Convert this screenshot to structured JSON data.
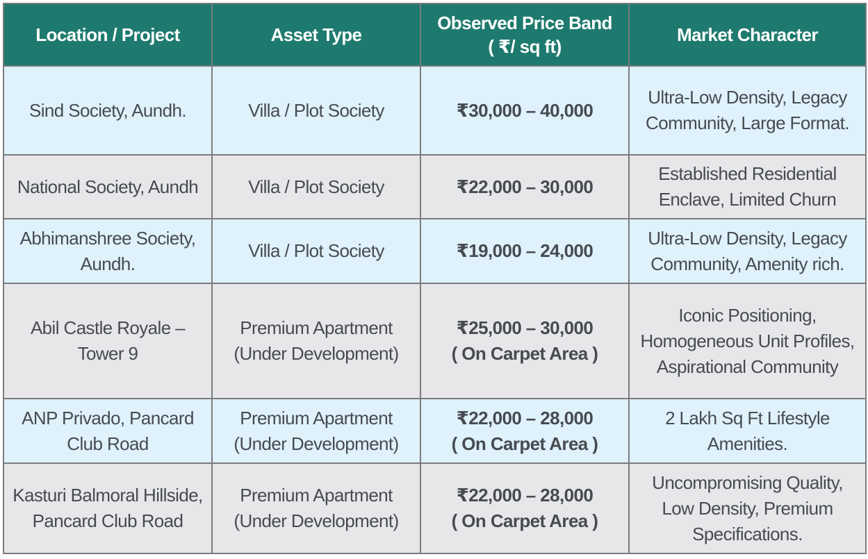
{
  "header": {
    "columns": [
      "Location / Project",
      "Asset Type",
      "Observed Price Band",
      "Market Character"
    ],
    "price_unit": "( ₹/ sq ft)"
  },
  "rows": [
    {
      "location": "Sind Society, Aundh.",
      "asset": "Villa / Plot Society",
      "price": "₹30,000 – 40,000",
      "note": "",
      "character": "Ultra-Low Density, Legacy Community, Large Format."
    },
    {
      "location": "National Society, Aundh",
      "asset": "Villa / Plot Society",
      "price": "₹22,000 – 30,000",
      "note": "",
      "character": "Established Residential Enclave, Limited Churn"
    },
    {
      "location": "Abhimanshree Society, Aundh.",
      "asset": "Villa / Plot Society",
      "price": "₹19,000 – 24,000",
      "note": "",
      "character": "Ultra-Low Density, Legacy Community, Amenity rich."
    },
    {
      "location": "Abil Castle Royale – Tower 9",
      "asset": "Premium Apartment (Under Development)",
      "price": "₹25,000 – 30,000",
      "note": "( On Carpet Area )",
      "character": "Iconic Positioning, Homogeneous Unit Profiles, Aspirational Community"
    },
    {
      "location": "ANP Privado, Pancard Club Road",
      "asset": "Premium Apartment (Under Development)",
      "price": "₹22,000 – 28,000",
      "note": "( On Carpet Area )",
      "character": "2 Lakh Sq Ft Lifestyle Amenities."
    },
    {
      "location": "Kasturi Balmoral Hillside, Pancard Club Road",
      "asset": "Premium Apartment (Under Development)",
      "price": "₹22,000 – 28,000",
      "note": "( On Carpet Area )",
      "character": "Uncompromising Quality, Low Density, Premium Specifications."
    }
  ]
}
